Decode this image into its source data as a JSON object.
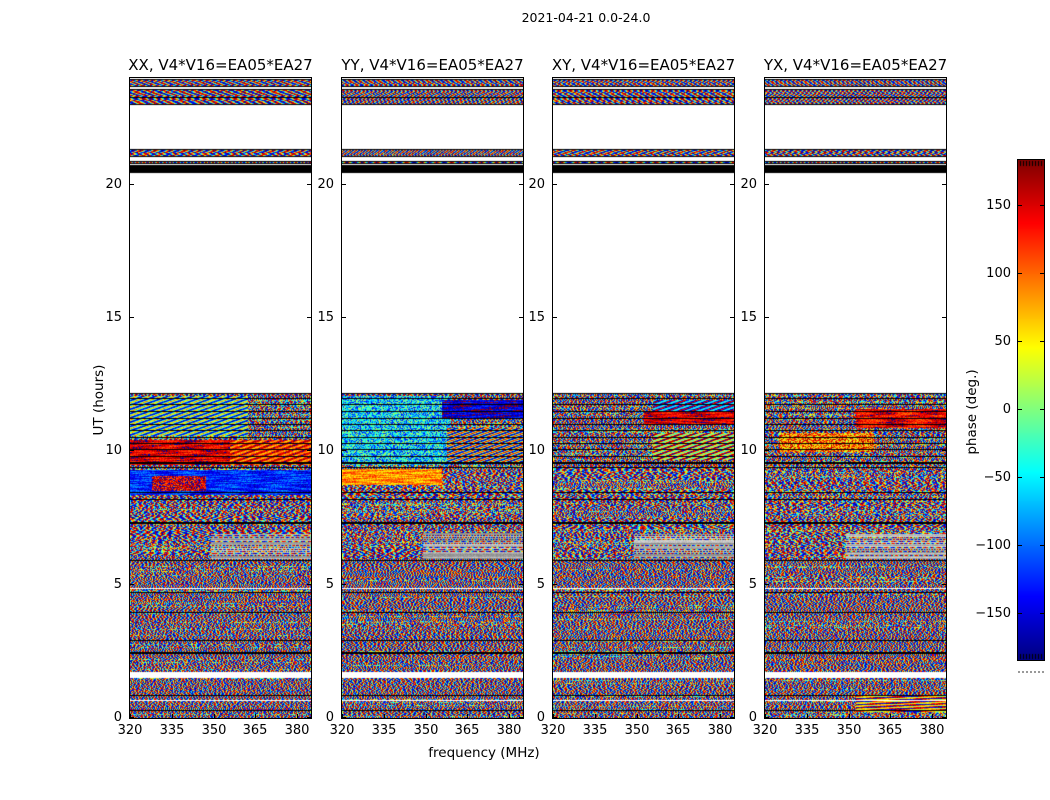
{
  "figure": {
    "title": "2021-04-21 0.0-24.0"
  },
  "chart_data": {
    "type": "heatmap",
    "title": "2021-04-21 0.0-24.0",
    "xlabel": "frequency (MHz)",
    "ylabel": "UT (hours)",
    "x_ticks": [
      320,
      335,
      350,
      365,
      380
    ],
    "x_range": [
      320,
      385
    ],
    "y_ticks": [
      0,
      5,
      10,
      15,
      20
    ],
    "y_range": [
      0,
      24
    ],
    "grid": false,
    "colormap": "jet",
    "colorbar": {
      "label": "phase (deg.)",
      "ticks": [
        150,
        100,
        50,
        0,
        -50,
        -100,
        -150
      ],
      "range": [
        -184,
        184
      ],
      "position": "right"
    },
    "panels": [
      {
        "id": "xx",
        "title": "XX, V4*V16=EA05*EA27",
        "seed": 11,
        "features": [
          {
            "t0": 10.6,
            "t1": 12.1,
            "f0": 0.0,
            "f1": 0.65,
            "style": "diag",
            "phase": -40,
            "spread": 120
          },
          {
            "t0": 9.5,
            "t1": 10.45,
            "f0": 0.0,
            "f1": 1.0,
            "style": "smooth",
            "phase": 148,
            "spread": 46
          },
          {
            "t0": 9.5,
            "t1": 10.45,
            "f0": 0.55,
            "f1": 1.0,
            "style": "diag",
            "phase": 120,
            "spread": 48
          },
          {
            "t0": 8.4,
            "t1": 9.3,
            "f0": 0.0,
            "f1": 1.0,
            "style": "smooth",
            "phase": -125,
            "spread": 50
          },
          {
            "t0": 8.55,
            "t1": 9.1,
            "f0": 0.12,
            "f1": 0.42,
            "style": "speckle",
            "phase": 150,
            "spread": 60
          },
          {
            "t0": 6.0,
            "t1": 6.95,
            "f0": 0.45,
            "f1": 1.0,
            "style": "gray",
            "phase": 0,
            "spread": 0
          }
        ]
      },
      {
        "id": "yy",
        "title": "YY, V4*V16=EA05*EA27",
        "seed": 22,
        "features": [
          {
            "t0": 9.5,
            "t1": 12.1,
            "f0": 0.0,
            "f1": 0.6,
            "style": "speckle",
            "phase": -58,
            "spread": 85
          },
          {
            "t0": 11.25,
            "t1": 11.95,
            "f0": 0.55,
            "f1": 1.0,
            "style": "smooth",
            "phase": -155,
            "spread": 45
          },
          {
            "t0": 9.55,
            "t1": 10.9,
            "f0": 0.58,
            "f1": 1.0,
            "style": "diag",
            "phase": -20,
            "spread": 160
          },
          {
            "t0": 8.75,
            "t1": 9.35,
            "f0": 0.0,
            "f1": 0.55,
            "style": "smooth",
            "phase": 85,
            "spread": 55
          },
          {
            "t0": 6.0,
            "t1": 6.95,
            "f0": 0.45,
            "f1": 1.0,
            "style": "gray",
            "phase": 0,
            "spread": 0
          }
        ]
      },
      {
        "id": "xy",
        "title": "XY, V4*V16=EA05*EA27",
        "seed": 33,
        "features": [
          {
            "t0": 11.05,
            "t1": 11.5,
            "f0": 0.5,
            "f1": 1.0,
            "style": "smooth",
            "phase": 150,
            "spread": 42
          },
          {
            "t0": 11.55,
            "t1": 11.95,
            "f0": 0.55,
            "f1": 1.0,
            "style": "diag",
            "phase": -120,
            "spread": 90
          },
          {
            "t0": 9.7,
            "t1": 10.7,
            "f0": 0.55,
            "f1": 1.0,
            "style": "diag",
            "phase": 85,
            "spread": 110
          },
          {
            "t0": 6.0,
            "t1": 6.95,
            "f0": 0.45,
            "f1": 1.0,
            "style": "gray",
            "phase": 0,
            "spread": 0
          }
        ]
      },
      {
        "id": "yx",
        "title": "YX, V4*V16=EA05*EA27",
        "seed": 44,
        "features": [
          {
            "t0": 10.9,
            "t1": 11.6,
            "f0": 0.5,
            "f1": 1.0,
            "style": "smooth",
            "phase": 142,
            "spread": 55
          },
          {
            "t0": 10.0,
            "t1": 10.7,
            "f0": 0.08,
            "f1": 0.6,
            "style": "speckle",
            "phase": 95,
            "spread": 80
          },
          {
            "t0": 0.25,
            "t1": 0.85,
            "f0": 0.5,
            "f1": 1.0,
            "style": "streaks",
            "phase": 115,
            "spread": 60
          },
          {
            "t0": 6.0,
            "t1": 6.95,
            "f0": 0.45,
            "f1": 1.0,
            "style": "gray",
            "phase": 0,
            "spread": 0
          }
        ]
      }
    ],
    "time_bands": [
      {
        "t0": 23.68,
        "t1": 23.95,
        "mode": "noise"
      },
      {
        "t0": 23.0,
        "t1": 23.6,
        "mode": "noise"
      },
      {
        "t0": 21.02,
        "t1": 21.34,
        "mode": "noise"
      },
      {
        "t0": 20.79,
        "t1": 20.88,
        "mode": "noise"
      },
      {
        "t0": 20.42,
        "t1": 20.72,
        "mode": "black"
      },
      {
        "t0": 0.0,
        "t1": 12.19,
        "mode": "noise"
      }
    ],
    "flag_lines_black": [
      {
        "t": 23.3,
        "w": 1
      },
      {
        "t": 12.0,
        "w": 1
      },
      {
        "t": 11.78,
        "w": 1
      },
      {
        "t": 11.5,
        "w": 1
      },
      {
        "t": 11.25,
        "w": 1
      },
      {
        "t": 11.03,
        "w": 1
      },
      {
        "t": 10.8,
        "w": 1
      },
      {
        "t": 10.54,
        "w": 1
      },
      {
        "t": 10.31,
        "w": 1
      },
      {
        "t": 10.09,
        "w": 1
      },
      {
        "t": 9.83,
        "w": 1
      },
      {
        "t": 9.6,
        "w": 2
      },
      {
        "t": 9.42,
        "w": 1
      },
      {
        "t": 8.48,
        "w": 1
      },
      {
        "t": 8.21,
        "w": 1
      },
      {
        "t": 7.35,
        "w": 2
      },
      {
        "t": 5.93,
        "w": 1
      },
      {
        "t": 4.73,
        "w": 1
      },
      {
        "t": 3.98,
        "w": 1
      },
      {
        "t": 2.93,
        "w": 1
      },
      {
        "t": 2.48,
        "w": 2
      },
      {
        "t": 0.86,
        "w": 1
      },
      {
        "t": 0.3,
        "w": 1
      }
    ],
    "flag_lines_white": [
      {
        "t": 4.88,
        "w": 1
      },
      {
        "t": 1.72,
        "w": 6
      },
      {
        "t": 0.68,
        "w": 1
      }
    ]
  }
}
